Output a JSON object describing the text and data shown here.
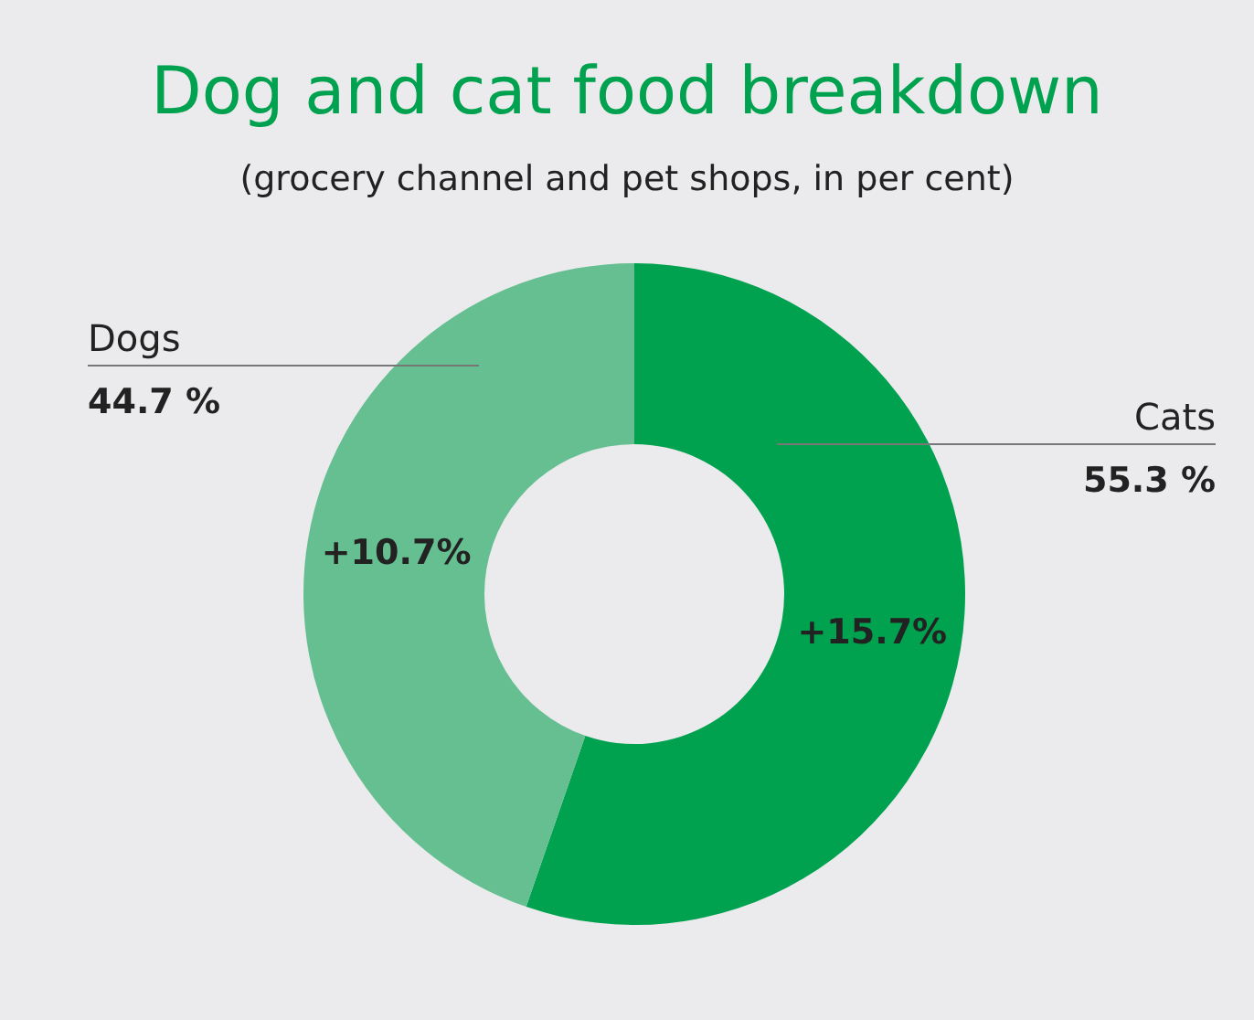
{
  "chart_data": {
    "type": "donut",
    "title": "Dog and cat food breakdown",
    "subtitle": "(grocery channel and pet shops, in per cent)",
    "categories": [
      "Cats",
      "Dogs"
    ],
    "values": [
      55.3,
      44.7
    ],
    "colors": [
      "#00a14f",
      "#66bf91"
    ],
    "value_labels": [
      "55.3 %",
      "44.7 %"
    ],
    "annotations": [
      {
        "text": "+15.7%",
        "x": "Cats"
      },
      {
        "text": "+10.7%",
        "x": "Dogs"
      }
    ],
    "legend": false
  }
}
